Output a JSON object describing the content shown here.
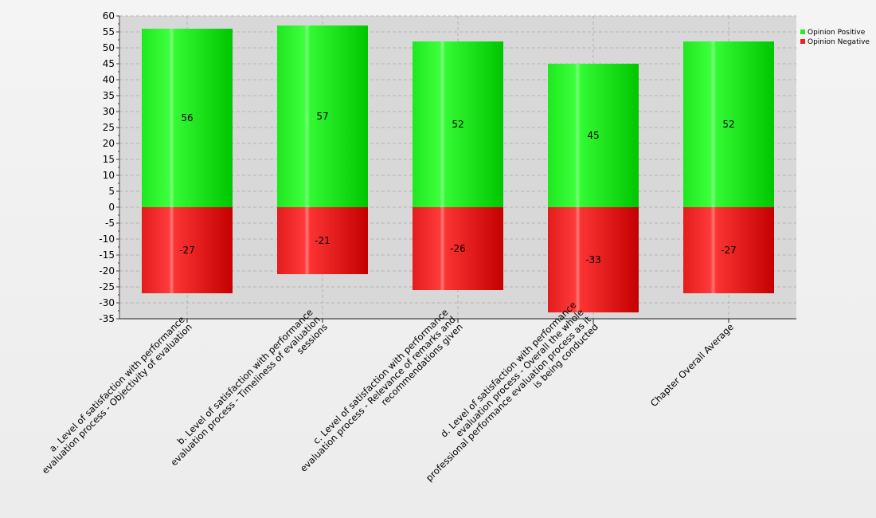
{
  "chart_data": {
    "type": "bar",
    "stacked": true,
    "categories": [
      [
        "a. Level of satisfaction with performance",
        "evaluation process - Objectivity of evaluation"
      ],
      [
        "b. Level of satisfaction with performance",
        "evaluation process - Timeliness of evaluation",
        "sessions"
      ],
      [
        "c. Level of satisfaction with performance",
        "evaluation process - Relevance of remarks and",
        "recommendations given"
      ],
      [
        "d. Level of satisfaction with performance",
        "evaluation process - Overall the whole",
        "professional performance evaluation process as it",
        "is being conducted"
      ],
      [
        "Chapter Overall Average"
      ]
    ],
    "series": [
      {
        "name": "Opinion Positive",
        "color": "#22ee22",
        "values": [
          56,
          57,
          52,
          45,
          52
        ]
      },
      {
        "name": "Opinion Negative",
        "color": "#ee2222",
        "values": [
          -27,
          -21,
          -26,
          -33,
          -27
        ]
      }
    ],
    "ylim": [
      -35,
      60
    ],
    "yticks": [
      60,
      55,
      50,
      45,
      40,
      35,
      30,
      25,
      20,
      15,
      10,
      5,
      0,
      -5,
      -10,
      -15,
      -20,
      -25,
      -30,
      -35
    ],
    "grid": true,
    "legend_position": "top-right",
    "title": "",
    "xlabel": "",
    "ylabel": ""
  }
}
